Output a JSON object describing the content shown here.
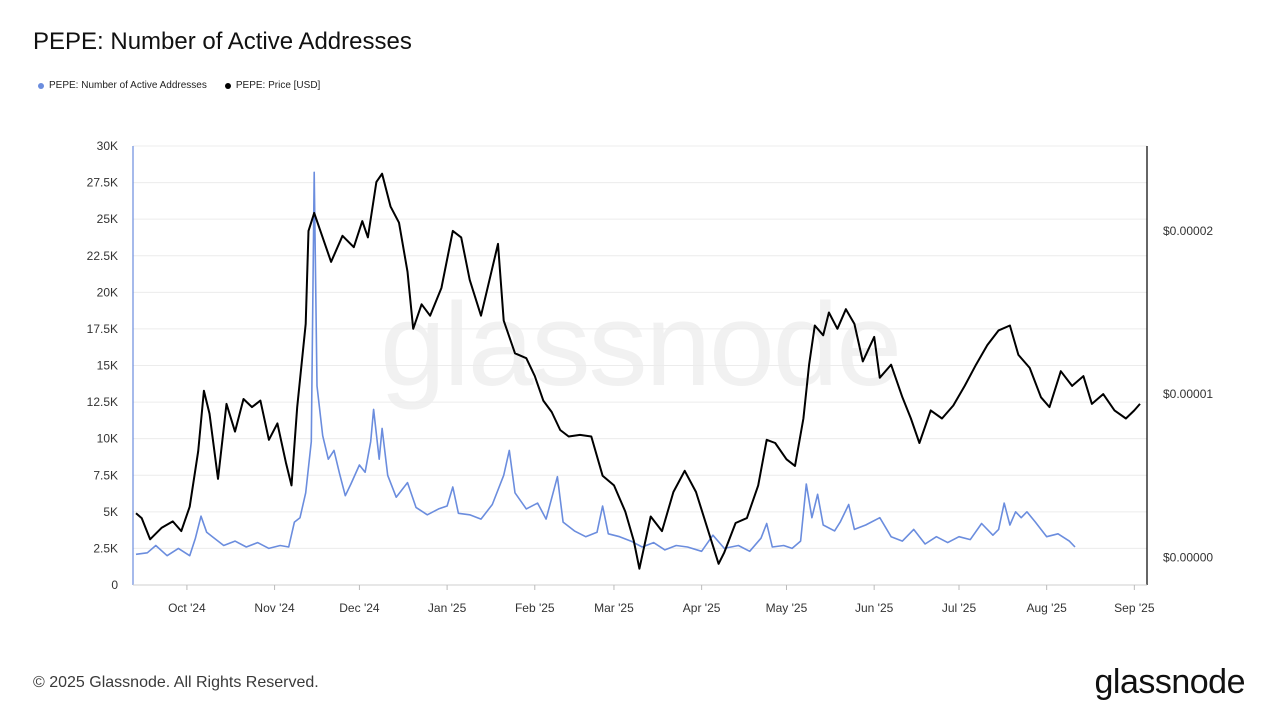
{
  "header": {
    "title": "PEPE: Number of Active Addresses"
  },
  "legend": [
    {
      "label": "PEPE: Number of Active Addresses",
      "color": "#6b8dde"
    },
    {
      "label": "PEPE: Price [USD]",
      "color": "#000000"
    }
  ],
  "watermark": "glassnode",
  "footer": {
    "copyright": "© 2025 Glassnode. All Rights Reserved.",
    "brand": "glassnode"
  },
  "chart_data": {
    "type": "line",
    "title": "PEPE: Number of Active Addresses",
    "x_ticks": [
      "Oct '24",
      "Nov '24",
      "Dec '24",
      "Jan '25",
      "Feb '25",
      "Mar '25",
      "Apr '25",
      "May '25",
      "Jun '25",
      "Jul '25",
      "Aug '25",
      "Sep '25"
    ],
    "y_left": {
      "ticks": [
        "0",
        "2.5K",
        "5K",
        "7.5K",
        "10K",
        "12.5K",
        "15K",
        "17.5K",
        "20K",
        "22.5K",
        "25K",
        "27.5K",
        "30K"
      ],
      "ylim": [
        0,
        30000
      ]
    },
    "y_right": {
      "ticks": [
        "$0.00000",
        "$0.00001",
        "$0.00002"
      ],
      "tick_values": [
        0,
        1e-05,
        2e-05
      ]
    },
    "grid": true,
    "legend_position": "top-left",
    "x_range": [
      "2024-09-13",
      "2025-09-03"
    ],
    "series": [
      {
        "name": "PEPE: Number of Active Addresses",
        "axis": "left",
        "color": "#6b8dde",
        "points": [
          [
            "2024-09-13",
            2100
          ],
          [
            "2024-09-17",
            2200
          ],
          [
            "2024-09-20",
            2700
          ],
          [
            "2024-09-24",
            2000
          ],
          [
            "2024-09-28",
            2500
          ],
          [
            "2024-10-02",
            2000
          ],
          [
            "2024-10-04",
            3200
          ],
          [
            "2024-10-06",
            4700
          ],
          [
            "2024-10-08",
            3600
          ],
          [
            "2024-10-10",
            3300
          ],
          [
            "2024-10-14",
            2700
          ],
          [
            "2024-10-18",
            3000
          ],
          [
            "2024-10-22",
            2600
          ],
          [
            "2024-10-26",
            2900
          ],
          [
            "2024-10-30",
            2500
          ],
          [
            "2024-11-03",
            2700
          ],
          [
            "2024-11-06",
            2600
          ],
          [
            "2024-11-08",
            4300
          ],
          [
            "2024-11-10",
            4600
          ],
          [
            "2024-11-12",
            6300
          ],
          [
            "2024-11-14",
            9800
          ],
          [
            "2024-11-15",
            28200
          ],
          [
            "2024-11-16",
            13600
          ],
          [
            "2024-11-18",
            10200
          ],
          [
            "2024-11-20",
            8600
          ],
          [
            "2024-11-22",
            9200
          ],
          [
            "2024-11-24",
            7600
          ],
          [
            "2024-11-26",
            6100
          ],
          [
            "2024-11-28",
            6900
          ],
          [
            "2024-12-01",
            8200
          ],
          [
            "2024-12-03",
            7700
          ],
          [
            "2024-12-05",
            9800
          ],
          [
            "2024-12-06",
            12000
          ],
          [
            "2024-12-08",
            8600
          ],
          [
            "2024-12-09",
            10700
          ],
          [
            "2024-12-11",
            7500
          ],
          [
            "2024-12-14",
            6000
          ],
          [
            "2024-12-18",
            7000
          ],
          [
            "2024-12-21",
            5300
          ],
          [
            "2024-12-25",
            4800
          ],
          [
            "2024-12-29",
            5200
          ],
          [
            "2025-01-01",
            5400
          ],
          [
            "2025-01-03",
            6700
          ],
          [
            "2025-01-05",
            4900
          ],
          [
            "2025-01-09",
            4800
          ],
          [
            "2025-01-13",
            4500
          ],
          [
            "2025-01-17",
            5500
          ],
          [
            "2025-01-21",
            7500
          ],
          [
            "2025-01-23",
            9200
          ],
          [
            "2025-01-25",
            6300
          ],
          [
            "2025-01-29",
            5200
          ],
          [
            "2025-02-02",
            5600
          ],
          [
            "2025-02-05",
            4500
          ],
          [
            "2025-02-09",
            7400
          ],
          [
            "2025-02-11",
            4300
          ],
          [
            "2025-02-15",
            3700
          ],
          [
            "2025-02-19",
            3300
          ],
          [
            "2025-02-23",
            3600
          ],
          [
            "2025-02-25",
            5400
          ],
          [
            "2025-02-27",
            3500
          ],
          [
            "2025-03-03",
            3300
          ],
          [
            "2025-03-07",
            3000
          ],
          [
            "2025-03-11",
            2600
          ],
          [
            "2025-03-15",
            2900
          ],
          [
            "2025-03-19",
            2400
          ],
          [
            "2025-03-23",
            2700
          ],
          [
            "2025-03-27",
            2600
          ],
          [
            "2025-04-01",
            2300
          ],
          [
            "2025-04-05",
            3400
          ],
          [
            "2025-04-09",
            2500
          ],
          [
            "2025-04-14",
            2700
          ],
          [
            "2025-04-18",
            2300
          ],
          [
            "2025-04-22",
            3200
          ],
          [
            "2025-04-24",
            4200
          ],
          [
            "2025-04-26",
            2600
          ],
          [
            "2025-04-30",
            2700
          ],
          [
            "2025-05-03",
            2500
          ],
          [
            "2025-05-06",
            3000
          ],
          [
            "2025-05-08",
            6900
          ],
          [
            "2025-05-10",
            4600
          ],
          [
            "2025-05-12",
            6200
          ],
          [
            "2025-05-14",
            4100
          ],
          [
            "2025-05-18",
            3700
          ],
          [
            "2025-05-20",
            4300
          ],
          [
            "2025-05-23",
            5500
          ],
          [
            "2025-05-25",
            3800
          ],
          [
            "2025-05-29",
            4100
          ],
          [
            "2025-06-03",
            4600
          ],
          [
            "2025-06-07",
            3300
          ],
          [
            "2025-06-11",
            3000
          ],
          [
            "2025-06-15",
            3800
          ],
          [
            "2025-06-19",
            2800
          ],
          [
            "2025-06-23",
            3300
          ],
          [
            "2025-06-27",
            2900
          ],
          [
            "2025-07-01",
            3300
          ],
          [
            "2025-07-05",
            3100
          ],
          [
            "2025-07-09",
            4200
          ],
          [
            "2025-07-13",
            3400
          ],
          [
            "2025-07-15",
            3800
          ],
          [
            "2025-07-17",
            5600
          ],
          [
            "2025-07-19",
            4100
          ],
          [
            "2025-07-21",
            5000
          ],
          [
            "2025-07-23",
            4600
          ],
          [
            "2025-07-25",
            5000
          ],
          [
            "2025-07-28",
            4300
          ],
          [
            "2025-08-01",
            3300
          ],
          [
            "2025-08-05",
            3500
          ],
          [
            "2025-08-09",
            3000
          ],
          [
            "2025-08-11",
            2600
          ]
        ]
      },
      {
        "name": "PEPE: Price [USD]",
        "axis": "right",
        "color": "#000000",
        "y_range": [
          -1.7e-06,
          2.52e-05
        ],
        "points": [
          [
            "2024-09-13",
            2.7e-06
          ],
          [
            "2024-09-15",
            2.4e-06
          ],
          [
            "2024-09-18",
            1.1e-06
          ],
          [
            "2024-09-22",
            1.8e-06
          ],
          [
            "2024-09-26",
            2.2e-06
          ],
          [
            "2024-09-29",
            1.6e-06
          ],
          [
            "2024-10-02",
            3.1e-06
          ],
          [
            "2024-10-05",
            6.5e-06
          ],
          [
            "2024-10-07",
            1.02e-05
          ],
          [
            "2024-10-09",
            8.8e-06
          ],
          [
            "2024-10-12",
            4.8e-06
          ],
          [
            "2024-10-15",
            9.4e-06
          ],
          [
            "2024-10-18",
            7.7e-06
          ],
          [
            "2024-10-21",
            9.7e-06
          ],
          [
            "2024-10-24",
            9.2e-06
          ],
          [
            "2024-10-27",
            9.6e-06
          ],
          [
            "2024-10-30",
            7.2e-06
          ],
          [
            "2024-11-02",
            8.2e-06
          ],
          [
            "2024-11-05",
            5.8e-06
          ],
          [
            "2024-11-07",
            4.4e-06
          ],
          [
            "2024-11-09",
            9.2e-06
          ],
          [
            "2024-11-12",
            1.43e-05
          ],
          [
            "2024-11-13",
            2e-05
          ],
          [
            "2024-11-15",
            2.11e-05
          ],
          [
            "2024-11-17",
            2.01e-05
          ],
          [
            "2024-11-21",
            1.81e-05
          ],
          [
            "2024-11-25",
            1.97e-05
          ],
          [
            "2024-11-29",
            1.9e-05
          ],
          [
            "2024-12-02",
            2.06e-05
          ],
          [
            "2024-12-04",
            1.96e-05
          ],
          [
            "2024-12-07",
            2.3e-05
          ],
          [
            "2024-12-09",
            2.35e-05
          ],
          [
            "2024-12-12",
            2.15e-05
          ],
          [
            "2024-12-15",
            2.05e-05
          ],
          [
            "2024-12-18",
            1.75e-05
          ],
          [
            "2024-12-20",
            1.4e-05
          ],
          [
            "2024-12-23",
            1.55e-05
          ],
          [
            "2024-12-26",
            1.48e-05
          ],
          [
            "2024-12-30",
            1.65e-05
          ],
          [
            "2025-01-03",
            2e-05
          ],
          [
            "2025-01-06",
            1.96e-05
          ],
          [
            "2025-01-09",
            1.7e-05
          ],
          [
            "2025-01-13",
            1.48e-05
          ],
          [
            "2025-01-16",
            1.7e-05
          ],
          [
            "2025-01-19",
            1.92e-05
          ],
          [
            "2025-01-21",
            1.45e-05
          ],
          [
            "2025-01-25",
            1.25e-05
          ],
          [
            "2025-01-29",
            1.22e-05
          ],
          [
            "2025-02-01",
            1.11e-05
          ],
          [
            "2025-02-04",
            9.6e-06
          ],
          [
            "2025-02-07",
            8.9e-06
          ],
          [
            "2025-02-10",
            7.8e-06
          ],
          [
            "2025-02-13",
            7.4e-06
          ],
          [
            "2025-02-17",
            7.5e-06
          ],
          [
            "2025-02-21",
            7.4e-06
          ],
          [
            "2025-02-25",
            5e-06
          ],
          [
            "2025-03-01",
            4.4e-06
          ],
          [
            "2025-03-05",
            2.8e-06
          ],
          [
            "2025-03-08",
            1e-06
          ],
          [
            "2025-03-10",
            -7e-07
          ],
          [
            "2025-03-14",
            2.5e-06
          ],
          [
            "2025-03-18",
            1.6e-06
          ],
          [
            "2025-03-22",
            4e-06
          ],
          [
            "2025-03-26",
            5.3e-06
          ],
          [
            "2025-03-30",
            4e-06
          ],
          [
            "2025-04-03",
            1.8e-06
          ],
          [
            "2025-04-07",
            -4e-07
          ],
          [
            "2025-04-09",
            3e-07
          ],
          [
            "2025-04-13",
            2.1e-06
          ],
          [
            "2025-04-17",
            2.4e-06
          ],
          [
            "2025-04-21",
            4.4e-06
          ],
          [
            "2025-04-24",
            7.2e-06
          ],
          [
            "2025-04-27",
            7e-06
          ],
          [
            "2025-05-01",
            6e-06
          ],
          [
            "2025-05-04",
            5.6e-06
          ],
          [
            "2025-05-07",
            8.5e-06
          ],
          [
            "2025-05-09",
            1.18e-05
          ],
          [
            "2025-05-11",
            1.42e-05
          ],
          [
            "2025-05-14",
            1.36e-05
          ],
          [
            "2025-05-16",
            1.5e-05
          ],
          [
            "2025-05-19",
            1.4e-05
          ],
          [
            "2025-05-22",
            1.52e-05
          ],
          [
            "2025-05-25",
            1.43e-05
          ],
          [
            "2025-05-28",
            1.2e-05
          ],
          [
            "2025-06-01",
            1.35e-05
          ],
          [
            "2025-06-03",
            1.1e-05
          ],
          [
            "2025-06-07",
            1.18e-05
          ],
          [
            "2025-06-11",
            9.8e-06
          ],
          [
            "2025-06-14",
            8.5e-06
          ],
          [
            "2025-06-17",
            7e-06
          ],
          [
            "2025-06-21",
            9e-06
          ],
          [
            "2025-06-25",
            8.5e-06
          ],
          [
            "2025-06-29",
            9.3e-06
          ],
          [
            "2025-07-03",
            1.05e-05
          ],
          [
            "2025-07-07",
            1.18e-05
          ],
          [
            "2025-07-11",
            1.3e-05
          ],
          [
            "2025-07-15",
            1.39e-05
          ],
          [
            "2025-07-19",
            1.42e-05
          ],
          [
            "2025-07-22",
            1.24e-05
          ],
          [
            "2025-07-26",
            1.16e-05
          ],
          [
            "2025-07-30",
            9.8e-06
          ],
          [
            "2025-08-02",
            9.2e-06
          ],
          [
            "2025-08-06",
            1.14e-05
          ],
          [
            "2025-08-10",
            1.05e-05
          ],
          [
            "2025-08-14",
            1.11e-05
          ],
          [
            "2025-08-17",
            9.4e-06
          ],
          [
            "2025-08-21",
            1e-05
          ],
          [
            "2025-08-25",
            9e-06
          ],
          [
            "2025-08-29",
            8.5e-06
          ],
          [
            "2025-09-01",
            9e-06
          ],
          [
            "2025-09-03",
            9.4e-06
          ]
        ]
      }
    ]
  }
}
